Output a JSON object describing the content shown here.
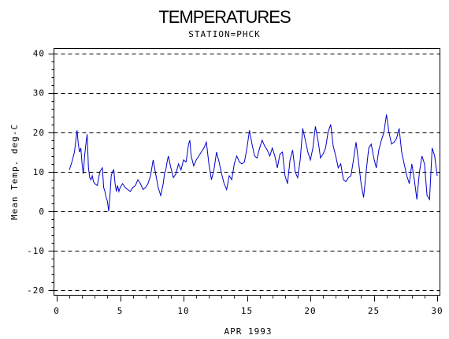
{
  "chart_data": {
    "type": "line",
    "title": "TEMPERATURES",
    "subtitle": "STATION=PHCK",
    "xlabel": "APR 1993",
    "ylabel": "Mean Temp. deg-C",
    "xlim": [
      0,
      30
    ],
    "ylim": [
      -21,
      41
    ],
    "x_ticks": [
      0,
      5,
      10,
      15,
      20,
      25,
      30
    ],
    "y_ticks": [
      -20,
      -10,
      0,
      10,
      20,
      30,
      40
    ],
    "y_gridlines": [
      -20,
      -10,
      0,
      10,
      20,
      30,
      40
    ],
    "grid": "dashed horizontal",
    "series_color": "#0000cc",
    "series": [
      {
        "name": "",
        "x": [
          1.0,
          1.2,
          1.4,
          1.6,
          1.7,
          1.8,
          1.9,
          2.0,
          2.1,
          2.2,
          2.3,
          2.4,
          2.5,
          2.6,
          2.7,
          2.8,
          2.9,
          3.0,
          3.2,
          3.4,
          3.6,
          3.7,
          3.8,
          3.9,
          4.0,
          4.1,
          4.2,
          4.3,
          4.4,
          4.5,
          4.6,
          4.7,
          4.8,
          4.9,
          5.0,
          5.2,
          5.4,
          5.6,
          5.8,
          6.0,
          6.2,
          6.4,
          6.6,
          6.8,
          7.0,
          7.2,
          7.4,
          7.6,
          7.8,
          8.0,
          8.2,
          8.4,
          8.5,
          8.6,
          8.7,
          8.8,
          9.0,
          9.2,
          9.4,
          9.6,
          9.8,
          10.0,
          10.2,
          10.4,
          10.5,
          10.6,
          10.8,
          11.0,
          11.2,
          11.4,
          11.6,
          11.8,
          12.0,
          12.2,
          12.4,
          12.6,
          12.8,
          13.0,
          13.2,
          13.4,
          13.6,
          13.8,
          14.0,
          14.2,
          14.4,
          14.6,
          14.8,
          15.0,
          15.2,
          15.4,
          15.6,
          15.8,
          16.0,
          16.2,
          16.4,
          16.6,
          16.8,
          17.0,
          17.2,
          17.4,
          17.6,
          17.8,
          18.0,
          18.2,
          18.4,
          18.6,
          18.8,
          19.0,
          19.2,
          19.4,
          19.6,
          19.8,
          20.0,
          20.2,
          20.4,
          20.6,
          20.8,
          21.0,
          21.2,
          21.4,
          21.6,
          21.8,
          22.0,
          22.2,
          22.4,
          22.6,
          22.8,
          23.0,
          23.2,
          23.4,
          23.6,
          23.8,
          24.0,
          24.2,
          24.4,
          24.6,
          24.8,
          25.0,
          25.2,
          25.4,
          25.6,
          25.8,
          26.0,
          26.2,
          26.4,
          26.6,
          26.8,
          27.0,
          27.2,
          27.4,
          27.6,
          27.8,
          28.0,
          28.2,
          28.4,
          28.6,
          28.8,
          29.0,
          29.2,
          29.4,
          29.6,
          29.8,
          30.0
        ],
        "values": [
          10.5,
          12.5,
          15.0,
          20.5,
          17.0,
          15.0,
          16.0,
          12.0,
          9.5,
          14.0,
          17.0,
          19.5,
          11.0,
          8.5,
          8.0,
          9.0,
          7.5,
          7.0,
          6.5,
          10.0,
          11.0,
          6.0,
          5.0,
          3.5,
          2.5,
          0.0,
          4.0,
          9.0,
          10.0,
          10.5,
          7.0,
          5.0,
          6.5,
          5.0,
          6.0,
          7.0,
          6.0,
          5.5,
          5.0,
          6.0,
          6.5,
          8.0,
          7.0,
          5.5,
          6.0,
          7.0,
          9.0,
          13.0,
          9.5,
          6.0,
          4.0,
          7.0,
          9.5,
          10.5,
          12.5,
          14.0,
          11.0,
          8.5,
          9.5,
          12.0,
          10.5,
          13.0,
          12.5,
          17.0,
          18.0,
          14.0,
          11.5,
          13.0,
          14.0,
          15.0,
          16.0,
          17.5,
          12.0,
          8.0,
          10.5,
          15.0,
          12.5,
          9.5,
          7.0,
          5.5,
          9.0,
          8.0,
          12.0,
          14.0,
          12.5,
          12.0,
          12.5,
          16.0,
          20.5,
          17.0,
          14.0,
          13.5,
          16.0,
          18.0,
          16.5,
          15.5,
          14.0,
          16.0,
          14.0,
          11.0,
          14.5,
          15.0,
          9.0,
          7.0,
          13.0,
          15.5,
          10.0,
          8.5,
          13.0,
          21.0,
          18.0,
          15.0,
          13.0,
          16.0,
          21.5,
          18.0,
          13.5,
          14.5,
          16.0,
          20.0,
          22.0,
          16.5,
          14.0,
          11.0,
          12.0,
          8.0,
          7.5,
          8.5,
          9.0,
          13.0,
          17.5,
          12.5,
          7.0,
          3.5,
          10.0,
          16.0,
          17.0,
          13.5,
          11.0,
          15.5,
          18.0,
          20.0,
          24.5,
          20.0,
          17.0,
          17.5,
          18.5,
          21.0,
          15.0,
          12.0,
          9.0,
          7.0,
          12.0,
          8.0,
          3.0,
          10.0,
          14.0,
          12.0,
          4.0,
          3.0,
          16.0,
          14.0,
          9.0
        ]
      }
    ]
  }
}
